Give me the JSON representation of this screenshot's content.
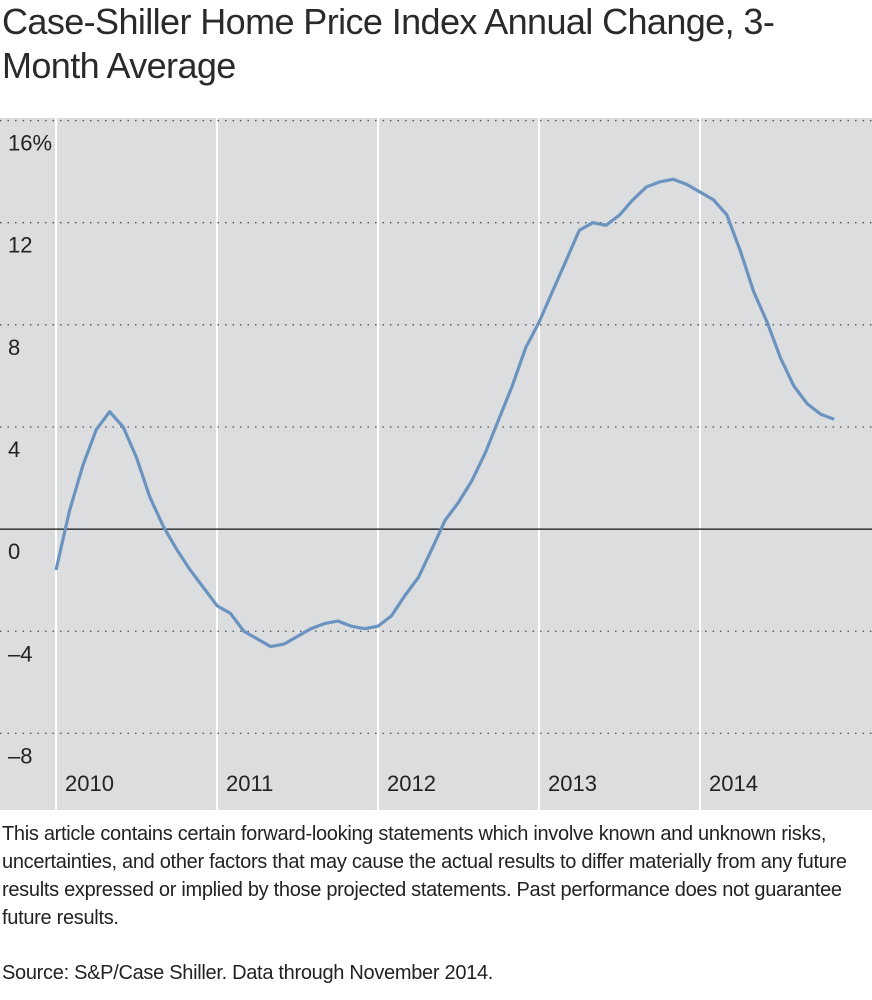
{
  "chart_data": {
    "type": "line",
    "title": "Case-Shiller Home Price Index Annual Change, 3-Month Average",
    "x": [
      2010,
      2010.083,
      2010.167,
      2010.25,
      2010.333,
      2010.417,
      2010.5,
      2010.583,
      2010.667,
      2010.75,
      2010.833,
      2010.917,
      2011,
      2011.083,
      2011.167,
      2011.25,
      2011.333,
      2011.417,
      2011.5,
      2011.583,
      2011.667,
      2011.75,
      2011.833,
      2011.917,
      2012,
      2012.083,
      2012.167,
      2012.25,
      2012.333,
      2012.417,
      2012.5,
      2012.583,
      2012.667,
      2012.75,
      2012.833,
      2012.917,
      2013,
      2013.083,
      2013.167,
      2013.25,
      2013.333,
      2013.417,
      2013.5,
      2013.583,
      2013.667,
      2013.75,
      2013.833,
      2013.917,
      2014,
      2014.083,
      2014.167,
      2014.25,
      2014.333,
      2014.417,
      2014.5,
      2014.583,
      2014.667,
      2014.75,
      2014.833
    ],
    "values": [
      -1.6,
      0.7,
      2.5,
      3.9,
      4.6,
      4.0,
      2.8,
      1.25,
      0.1,
      -0.8,
      -1.6,
      -2.3,
      -3.0,
      -3.3,
      -4.0,
      -4.3,
      -4.6,
      -4.5,
      -4.2,
      -3.9,
      -3.7,
      -3.6,
      -3.8,
      -3.9,
      -3.8,
      -3.4,
      -2.6,
      -1.9,
      -0.8,
      0.35,
      1.05,
      1.9,
      3.0,
      4.3,
      5.6,
      7.1,
      8.1,
      9.3,
      10.5,
      11.7,
      12.0,
      11.9,
      12.3,
      12.9,
      13.4,
      13.6,
      13.7,
      13.5,
      13.2,
      12.9,
      12.3,
      10.9,
      9.3,
      8.1,
      6.7,
      5.6,
      4.9,
      4.5,
      4.3
    ],
    "color": "#6b93c0",
    "xlim": [
      2009.652,
      2015.068
    ],
    "xticks": [
      2010,
      2011,
      2012,
      2013,
      2014
    ],
    "ylim": [
      -11,
      16.1
    ],
    "yticks": [
      {
        "value": 16,
        "label": "16%"
      },
      12,
      8,
      4,
      0,
      {
        "value": -4,
        "label": "–4"
      },
      {
        "value": -8,
        "label": "–8"
      }
    ],
    "grid": true
  },
  "footnote": "This article contains certain forward-looking statements which involve known and unknown risks, uncertainties, and other factors that may cause the actual results to differ materially from any future results expressed or implied by those projected statements. Past performance does not guarantee future results.",
  "source": "Source: S&P/Case Shiller. Data through November 2014."
}
